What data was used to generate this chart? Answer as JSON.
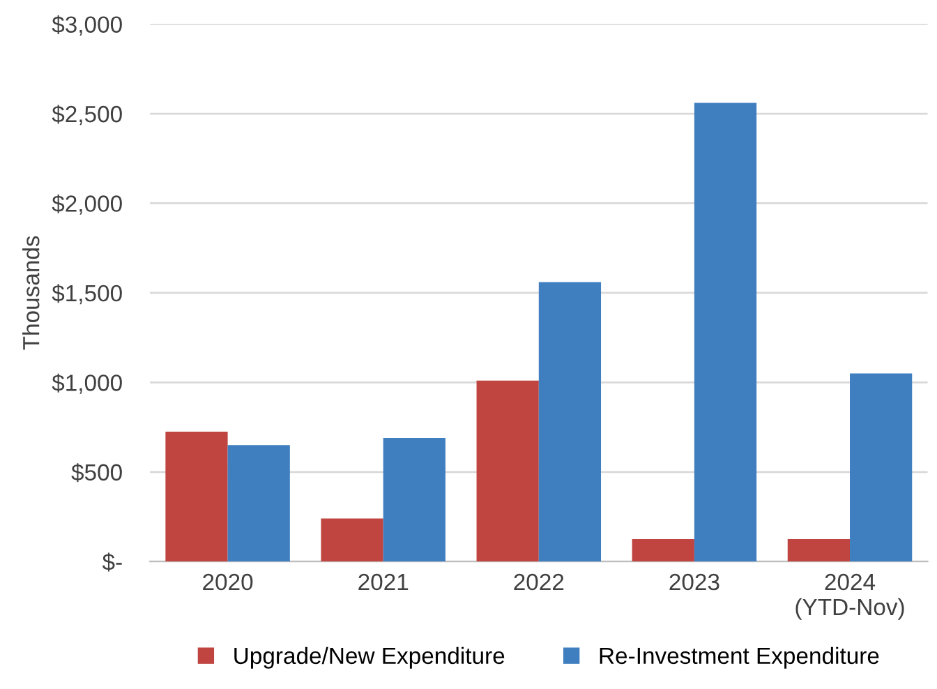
{
  "chart_data": {
    "type": "bar",
    "ylabel": "Thousands",
    "categories": [
      "2020",
      "2021",
      "2022",
      "2023",
      "2024\n(YTD-Nov)"
    ],
    "series": [
      {
        "name": "Upgrade/New Expenditure",
        "color": "#c0443f",
        "values": [
          725,
          240,
          1010,
          125,
          125
        ]
      },
      {
        "name": "Re-Investment Expenditure",
        "color": "#3f7fc0",
        "values": [
          650,
          690,
          1560,
          2560,
          1050
        ]
      }
    ],
    "ylim": [
      0,
      3000
    ],
    "yticks": [
      {
        "value": 0,
        "label": "$-"
      },
      {
        "value": 500,
        "label": "$500"
      },
      {
        "value": 1000,
        "label": "$1,000"
      },
      {
        "value": 1500,
        "label": "$1,500"
      },
      {
        "value": 2000,
        "label": "$2,000"
      },
      {
        "value": 2500,
        "label": "$2,500"
      },
      {
        "value": 3000,
        "label": "$3,000"
      }
    ],
    "grid": "y",
    "legend": "bottom"
  }
}
